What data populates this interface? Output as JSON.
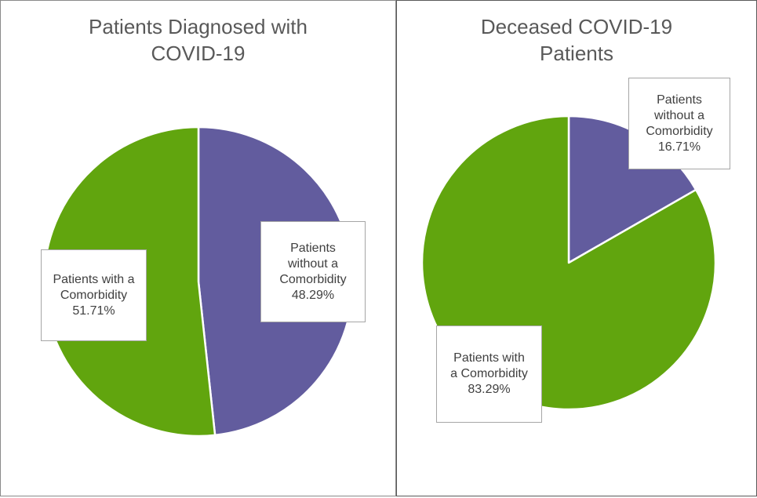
{
  "chart_data": [
    {
      "type": "pie",
      "title": "Patients Diagnosed with\nCOVID-19",
      "slices": [
        {
          "label_lines": [
            "Patients",
            "without a",
            "Comorbidity"
          ],
          "value_text": "48.29%",
          "value": 48.29,
          "color": "#625c9e"
        },
        {
          "label_lines": [
            "Patients with a",
            "Comorbidity"
          ],
          "value_text": "51.71%",
          "value": 51.71,
          "color": "#61a50e"
        }
      ]
    },
    {
      "type": "pie",
      "title": "Deceased COVID-19\nPatients",
      "slices": [
        {
          "label_lines": [
            "Patients",
            "without a",
            "Comorbidity"
          ],
          "value_text": "16.71%",
          "value": 16.71,
          "color": "#625c9e"
        },
        {
          "label_lines": [
            "Patients with",
            "a Comorbidity"
          ],
          "value_text": "83.29%",
          "value": 83.29,
          "color": "#61a50e"
        }
      ]
    }
  ]
}
